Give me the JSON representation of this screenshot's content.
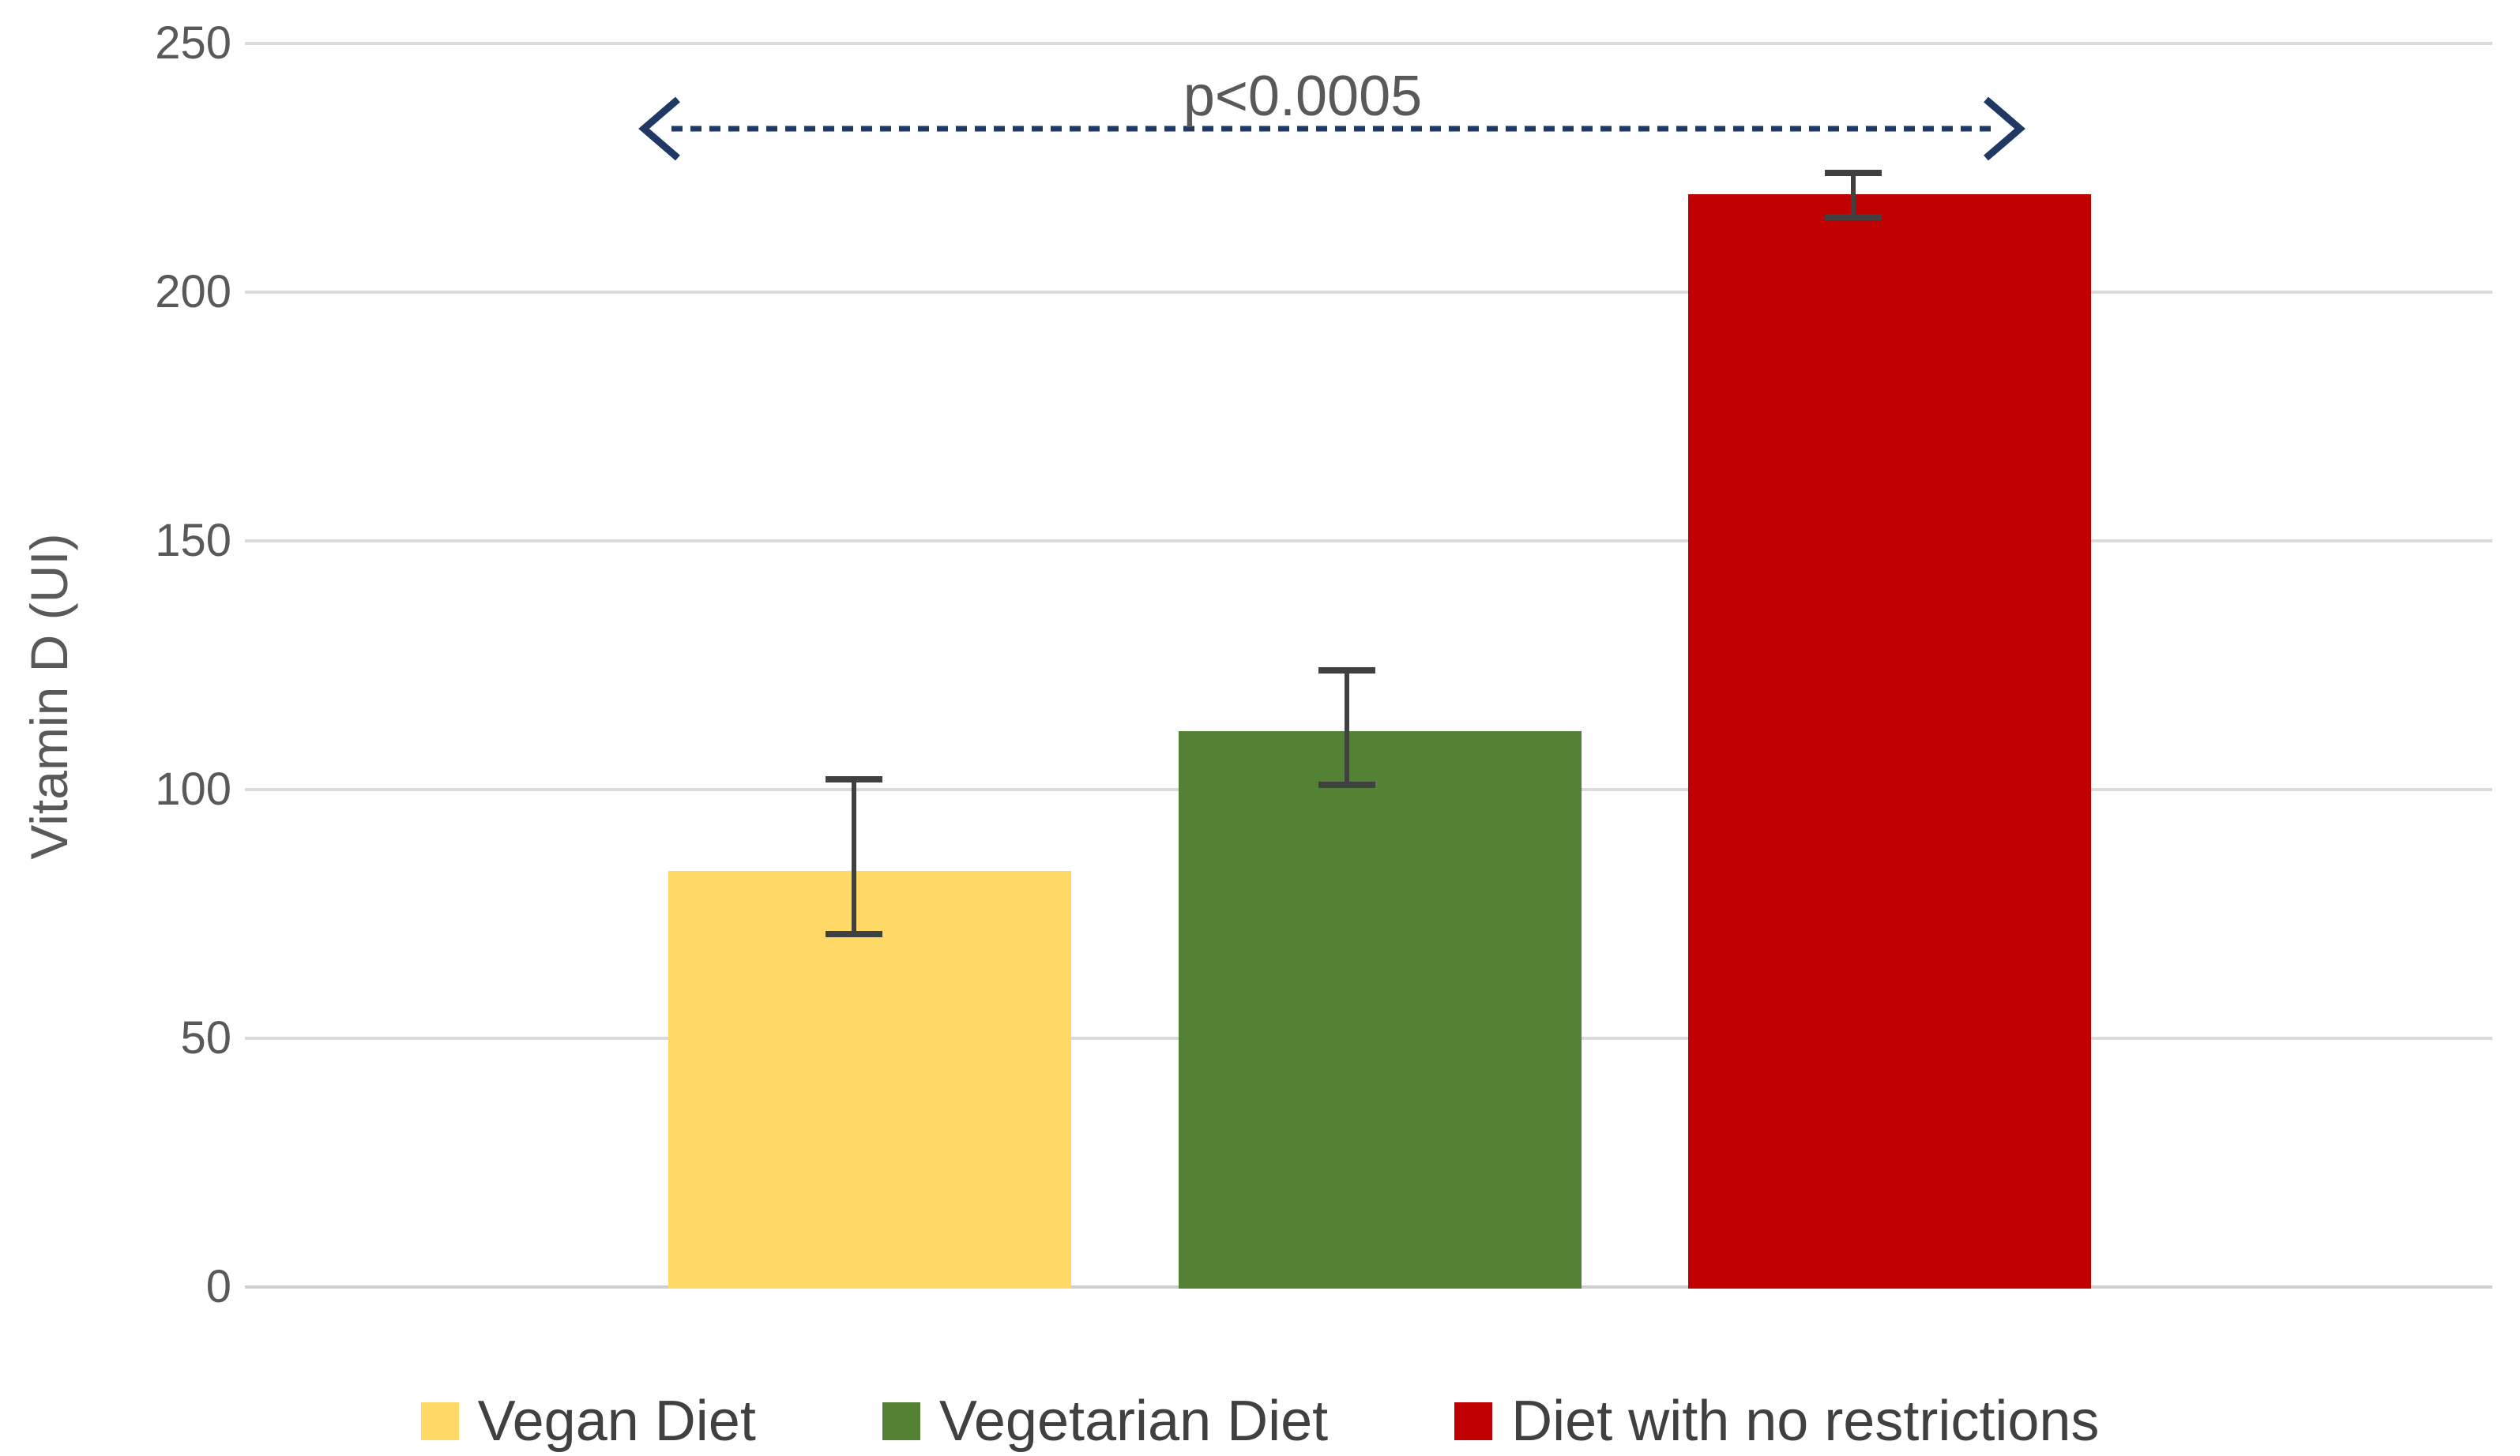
{
  "chart_data": {
    "type": "bar",
    "title": "",
    "xlabel": "",
    "ylabel": "Vitamin D (UI)",
    "ylim": [
      0,
      250
    ],
    "yticks": [
      0,
      50,
      100,
      150,
      200,
      250
    ],
    "grid": true,
    "legend_position": "bottom",
    "categories": [
      "Vegan Diet",
      "Vegetarian Diet",
      "Diet with no restrictions"
    ],
    "values": [
      84,
      112,
      220
    ],
    "error_low": [
      71,
      101,
      215
    ],
    "error_high": [
      102,
      124,
      224
    ],
    "colors": [
      "#FFD966",
      "#548235",
      "#C00000"
    ],
    "annotation": {
      "text": "p<0.0005",
      "from": "Vegan Diet",
      "to": "Diet with no restrictions"
    }
  },
  "style_colors": {
    "gridline": "#DBDBDB",
    "axis_line": "#CFCFCF",
    "tick_text": "#595959",
    "legend_text": "#404040",
    "error_bar": "#404040",
    "arrow": "#1F3864"
  }
}
